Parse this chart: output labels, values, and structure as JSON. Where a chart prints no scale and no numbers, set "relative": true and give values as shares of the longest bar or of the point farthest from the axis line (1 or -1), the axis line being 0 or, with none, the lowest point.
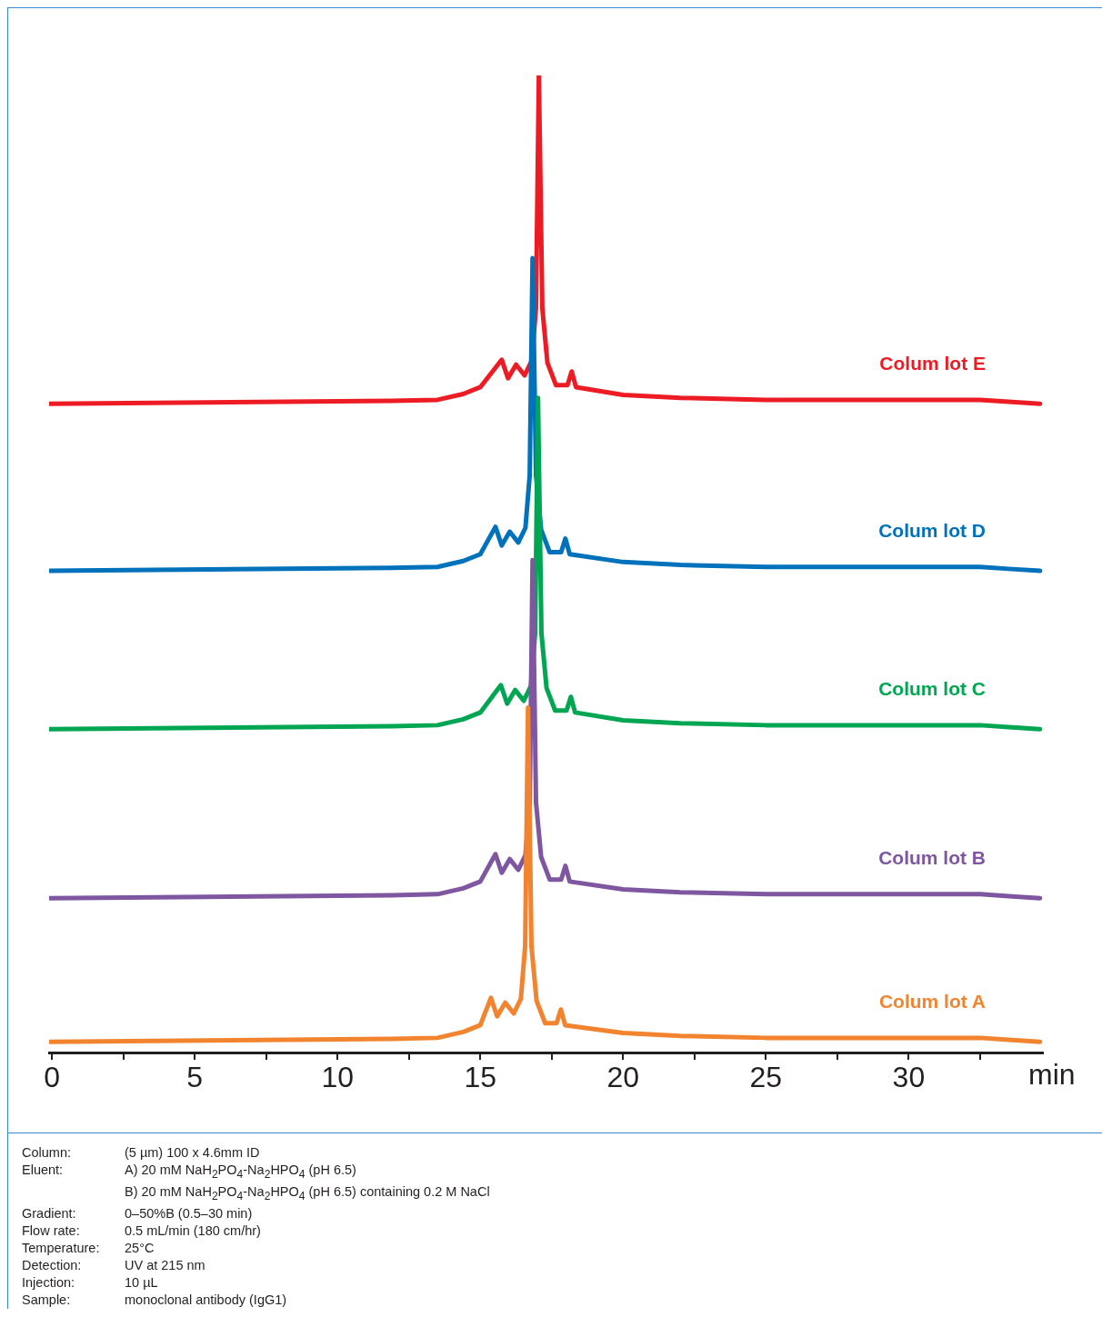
{
  "chart_data": {
    "type": "line",
    "relative": true,
    "xlabel": "min",
    "xlim": [
      -0.1,
      34.7
    ],
    "xticks": [
      0,
      {
        "value": 2.5,
        "label": null
      },
      5,
      {
        "value": 7.5,
        "label": null
      },
      10,
      {
        "value": 12.5,
        "label": null
      },
      15,
      {
        "value": 17.5,
        "label": null
      },
      20,
      {
        "value": 22.5,
        "label": null
      },
      25,
      {
        "value": 27.5,
        "label": null
      },
      30,
      {
        "value": 32.5,
        "label": null
      }
    ],
    "grid": false,
    "legend": false,
    "marker": "none",
    "line_style": "solid",
    "series": [
      {
        "name": "Colum lot A",
        "color": "#f3842f",
        "x": [
          -0.1,
          11.9,
          13.5,
          14.4,
          15.0,
          15.37,
          15.59,
          15.87,
          16.17,
          16.42,
          16.57,
          16.67,
          16.79,
          16.97,
          17.27,
          17.67,
          17.82,
          17.97,
          20,
          22,
          25,
          32.5,
          33.5,
          34.6
        ],
        "values": [
          0.011,
          0.014,
          0.015,
          0.021,
          0.028,
          0.056,
          0.037,
          0.051,
          0.04,
          0.055,
          0.109,
          0.353,
          0.109,
          0.053,
          0.03,
          0.03,
          0.044,
          0.028,
          0.02,
          0.017,
          0.015,
          0.015,
          0.013,
          0.011
        ]
      },
      {
        "name": "Colum lot B",
        "color": "#7f57a0",
        "x": [
          -0.1,
          11.9,
          13.5,
          14.4,
          15.0,
          15.53,
          15.75,
          16.03,
          16.33,
          16.58,
          16.73,
          16.83,
          16.95,
          17.13,
          17.43,
          17.83,
          17.98,
          18.13,
          20,
          22,
          25,
          32.5,
          33.5,
          34.6
        ],
        "values": [
          0.158,
          0.161,
          0.162,
          0.168,
          0.175,
          0.203,
          0.184,
          0.198,
          0.187,
          0.202,
          0.256,
          0.504,
          0.256,
          0.2,
          0.177,
          0.177,
          0.191,
          0.175,
          0.167,
          0.164,
          0.162,
          0.162,
          0.16,
          0.158
        ]
      },
      {
        "name": "Colum lot C",
        "color": "#00a651",
        "x": [
          -0.1,
          11.9,
          13.5,
          14.4,
          15.0,
          15.72,
          15.94,
          16.22,
          16.52,
          16.77,
          16.92,
          17.02,
          17.14,
          17.32,
          17.62,
          18.02,
          18.17,
          18.32,
          20,
          22,
          25,
          32.5,
          33.5,
          34.6
        ],
        "values": [
          0.331,
          0.334,
          0.335,
          0.341,
          0.348,
          0.376,
          0.357,
          0.371,
          0.36,
          0.375,
          0.429,
          0.67,
          0.429,
          0.373,
          0.35,
          0.35,
          0.364,
          0.348,
          0.34,
          0.337,
          0.335,
          0.335,
          0.333,
          0.331
        ]
      },
      {
        "name": "Colum lot D",
        "color": "#0072bc",
        "x": [
          -0.1,
          11.9,
          13.5,
          14.4,
          15.0,
          15.53,
          15.75,
          16.03,
          16.33,
          16.58,
          16.73,
          16.83,
          16.95,
          17.13,
          17.43,
          17.83,
          17.98,
          18.13,
          20,
          22,
          25,
          32.5,
          33.5,
          34.6
        ],
        "values": [
          0.493,
          0.496,
          0.497,
          0.503,
          0.51,
          0.538,
          0.519,
          0.533,
          0.522,
          0.537,
          0.591,
          0.813,
          0.591,
          0.535,
          0.512,
          0.512,
          0.526,
          0.51,
          0.502,
          0.499,
          0.497,
          0.497,
          0.495,
          0.493
        ]
      },
      {
        "name": "Colum lot E",
        "color": "#ed1c24",
        "x": [
          -0.1,
          11.9,
          13.5,
          14.4,
          15.0,
          15.75,
          15.97,
          16.25,
          16.55,
          16.8,
          16.95,
          17.05,
          17.17,
          17.35,
          17.65,
          18.05,
          18.2,
          18.35,
          20,
          22,
          25,
          32.5,
          33.5,
          34.6
        ],
        "values": [
          0.664,
          0.667,
          0.668,
          0.674,
          0.681,
          0.709,
          0.69,
          0.704,
          0.693,
          0.708,
          0.762,
          1,
          0.762,
          0.706,
          0.683,
          0.683,
          0.697,
          0.681,
          0.673,
          0.67,
          0.668,
          0.668,
          0.666,
          0.664
        ]
      }
    ],
    "annotations": [
      "Column: (5 µm) 100 x 4.6mm ID",
      "Eluent: A) 20 mM NaH$_{2}$PO$_{4}$-Na$_{2}$HPO$_{4}$ (pH 6.5)",
      "B) 20 mM NaH$_{2}$PO$_{4}$-Na$_{2}$HPO$_{4}$ (pH 6.5) containing 0.2 M NaCl",
      "Gradient: 0–50%B (0.5–30 min)",
      "Flow rate: 0.5 mL/min (180 cm/hr)",
      "Temperature: 25°C",
      "Detection: UV at 215 nm",
      "Injection: 10 µL",
      "Sample: monoclonal antibody (IgG1)"
    ]
  }
}
